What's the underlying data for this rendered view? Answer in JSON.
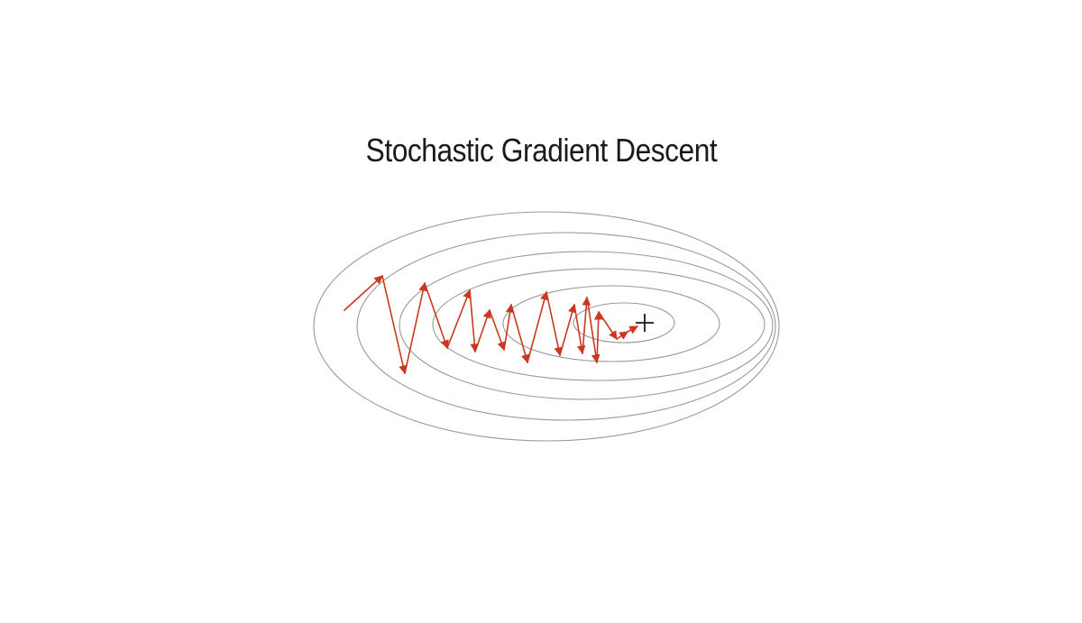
{
  "title": "Stochastic Gradient Descent",
  "colors": {
    "contour": "#9a9a9a",
    "path": "#c8391f",
    "minimum": "#1a1a1a",
    "background": "#ffffff"
  },
  "contours": {
    "count": 6
  },
  "minimum_marker": {
    "icon": "plus-icon"
  },
  "path": {
    "steps": 21
  }
}
